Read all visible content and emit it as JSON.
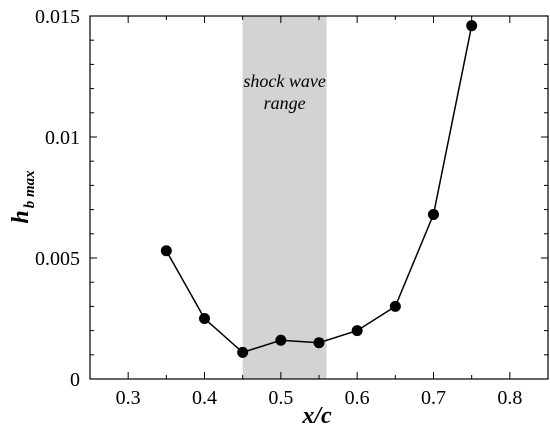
{
  "chart_data": {
    "type": "line",
    "title": "",
    "xlabel": "x/c",
    "ylabel": {
      "main": "h",
      "subscript": "b max"
    },
    "xlim": [
      0.25,
      0.85
    ],
    "ylim": [
      0,
      0.015
    ],
    "x_ticks": [
      0.3,
      0.4,
      0.5,
      0.6,
      0.7,
      0.8
    ],
    "x_tick_labels": [
      "0.3",
      "0.4",
      "0.5",
      "0.6",
      "0.7",
      "0.8"
    ],
    "y_ticks": [
      0,
      0.005,
      0.01,
      0.015
    ],
    "y_tick_labels": [
      "0",
      "0.005",
      "0.01",
      "0.015"
    ],
    "grid": false,
    "series": [
      {
        "x": [
          0.35,
          0.4,
          0.45,
          0.5,
          0.55,
          0.6,
          0.65,
          0.7,
          0.75
        ],
        "y": [
          0.0053,
          0.0025,
          0.0011,
          0.0016,
          0.0015,
          0.002,
          0.003,
          0.0068,
          0.0146
        ],
        "color": "#000000",
        "marker": "circle"
      }
    ],
    "shaded_region": {
      "x_range": [
        0.45,
        0.56
      ],
      "color": "#d3d3d3",
      "label_lines": [
        "shock wave",
        "range"
      ]
    }
  }
}
